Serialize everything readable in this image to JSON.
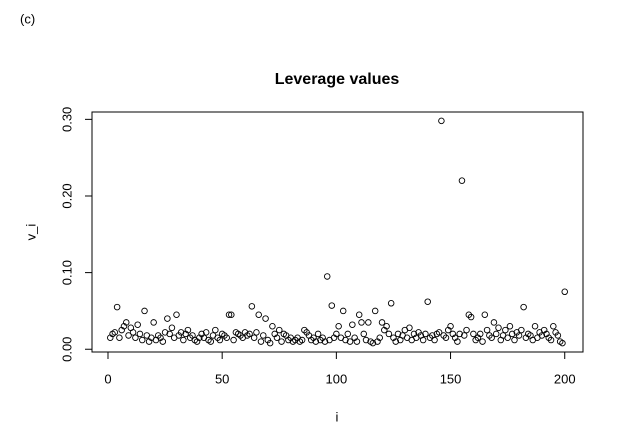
{
  "panel_label": "(c)",
  "chart_data": {
    "type": "scatter",
    "title": "Leverage values",
    "x_label": "i",
    "y_label": "v_i",
    "color": "#000000",
    "xlim": [
      -7,
      208
    ],
    "xticks": [
      0,
      50,
      100,
      150,
      200
    ],
    "ylim": [
      -0.0036,
      0.3096
    ],
    "yticks": [
      {
        "value": 0,
        "label": "0.00"
      },
      {
        "value": 0.1,
        "label": "0.10"
      },
      {
        "value": 0.2,
        "label": "0.20"
      },
      {
        "value": 0.3,
        "label": "0.30"
      }
    ],
    "x": [
      1,
      2,
      3,
      4,
      5,
      6,
      7,
      8,
      9,
      10,
      11,
      12,
      13,
      14,
      15,
      16,
      17,
      18,
      19,
      20,
      21,
      22,
      23,
      24,
      25,
      26,
      27,
      28,
      29,
      30,
      31,
      32,
      33,
      34,
      35,
      36,
      37,
      38,
      39,
      40,
      41,
      42,
      43,
      44,
      45,
      46,
      47,
      48,
      49,
      50,
      51,
      52,
      53,
      54,
      55,
      56,
      57,
      58,
      59,
      60,
      61,
      62,
      63,
      64,
      65,
      66,
      67,
      68,
      69,
      70,
      71,
      72,
      73,
      74,
      75,
      76,
      77,
      78,
      79,
      80,
      81,
      82,
      83,
      84,
      85,
      86,
      87,
      88,
      89,
      90,
      91,
      92,
      93,
      94,
      95,
      96,
      97,
      98,
      99,
      100,
      101,
      102,
      103,
      104,
      105,
      106,
      107,
      108,
      109,
      110,
      111,
      112,
      113,
      114,
      115,
      116,
      117,
      118,
      119,
      120,
      121,
      122,
      123,
      124,
      125,
      126,
      127,
      128,
      129,
      130,
      131,
      132,
      133,
      134,
      135,
      136,
      137,
      138,
      139,
      140,
      141,
      142,
      143,
      144,
      145,
      146,
      147,
      148,
      149,
      150,
      151,
      152,
      153,
      154,
      155,
      156,
      157,
      158,
      159,
      160,
      161,
      162,
      163,
      164,
      165,
      166,
      167,
      168,
      169,
      170,
      171,
      172,
      173,
      174,
      175,
      176,
      177,
      178,
      179,
      180,
      181,
      182,
      183,
      184,
      185,
      186,
      187,
      188,
      189,
      190,
      191,
      192,
      193,
      194,
      195,
      196,
      197,
      198,
      199,
      200
    ],
    "values": [
      0.015,
      0.02,
      0.022,
      0.055,
      0.015,
      0.025,
      0.03,
      0.035,
      0.018,
      0.028,
      0.022,
      0.015,
      0.032,
      0.02,
      0.012,
      0.05,
      0.018,
      0.01,
      0.015,
      0.035,
      0.012,
      0.018,
      0.015,
      0.01,
      0.022,
      0.04,
      0.02,
      0.028,
      0.015,
      0.045,
      0.018,
      0.022,
      0.012,
      0.02,
      0.025,
      0.015,
      0.018,
      0.012,
      0.01,
      0.015,
      0.02,
      0.015,
      0.022,
      0.012,
      0.01,
      0.018,
      0.025,
      0.015,
      0.012,
      0.02,
      0.018,
      0.015,
      0.045,
      0.045,
      0.012,
      0.022,
      0.02,
      0.018,
      0.015,
      0.022,
      0.018,
      0.02,
      0.056,
      0.015,
      0.022,
      0.045,
      0.01,
      0.018,
      0.04,
      0.012,
      0.008,
      0.03,
      0.02,
      0.015,
      0.025,
      0.01,
      0.02,
      0.018,
      0.012,
      0.015,
      0.01,
      0.012,
      0.015,
      0.01,
      0.012,
      0.025,
      0.022,
      0.018,
      0.012,
      0.015,
      0.01,
      0.02,
      0.012,
      0.015,
      0.01,
      0.095,
      0.012,
      0.057,
      0.015,
      0.02,
      0.03,
      0.015,
      0.05,
      0.012,
      0.02,
      0.01,
      0.032,
      0.015,
      0.01,
      0.045,
      0.035,
      0.02,
      0.012,
      0.035,
      0.01,
      0.008,
      0.05,
      0.01,
      0.015,
      0.035,
      0.025,
      0.03,
      0.02,
      0.06,
      0.015,
      0.01,
      0.02,
      0.012,
      0.018,
      0.025,
      0.015,
      0.028,
      0.012,
      0.02,
      0.015,
      0.022,
      0.018,
      0.012,
      0.02,
      0.062,
      0.015,
      0.018,
      0.012,
      0.02,
      0.022,
      0.298,
      0.018,
      0.015,
      0.025,
      0.03,
      0.02,
      0.015,
      0.01,
      0.02,
      0.22,
      0.018,
      0.025,
      0.045,
      0.042,
      0.02,
      0.012,
      0.015,
      0.02,
      0.01,
      0.045,
      0.025,
      0.018,
      0.015,
      0.035,
      0.02,
      0.028,
      0.012,
      0.018,
      0.025,
      0.015,
      0.03,
      0.02,
      0.012,
      0.022,
      0.018,
      0.025,
      0.055,
      0.015,
      0.02,
      0.018,
      0.012,
      0.03,
      0.015,
      0.022,
      0.018,
      0.025,
      0.02,
      0.015,
      0.012,
      0.03,
      0.022,
      0.018,
      0.01,
      0.008,
      0.075
    ]
  }
}
